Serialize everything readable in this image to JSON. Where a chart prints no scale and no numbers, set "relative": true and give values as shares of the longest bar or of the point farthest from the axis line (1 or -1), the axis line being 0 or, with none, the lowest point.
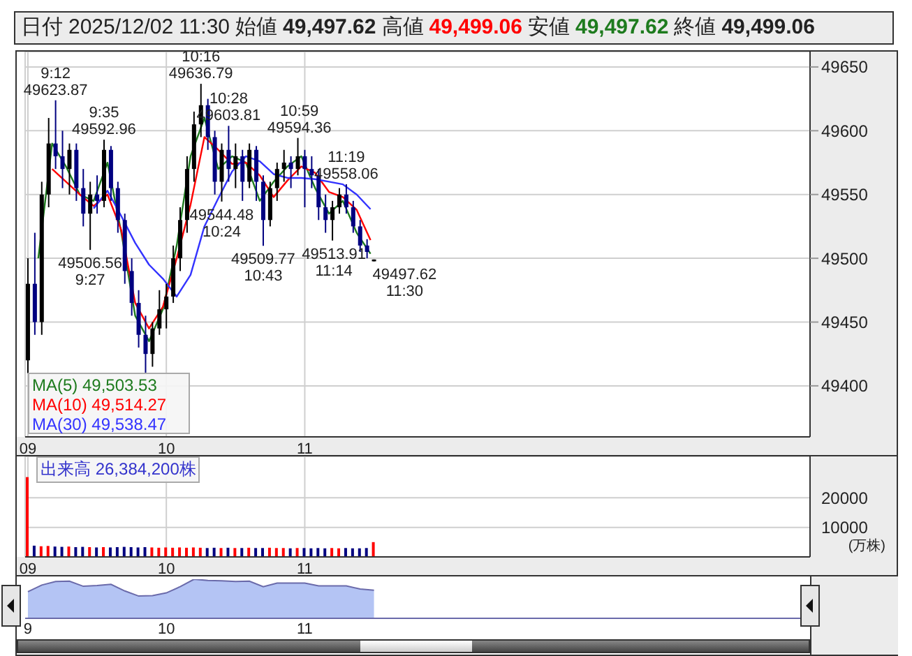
{
  "chart_data": [
    {
      "type": "candlestick",
      "title": "日付 2025/12/02 11:30 始値 49,497.62 高値 49,499.06 安値 49,497.62 終値 49,499.06",
      "x": [
        9,
        9.05,
        9.1,
        9.15,
        9.2,
        9.25,
        9.3,
        9.35,
        9.4,
        9.45,
        9.5,
        9.55,
        9.6,
        9.65,
        9.7,
        9.75,
        9.8,
        9.85,
        9.9,
        9.95,
        10,
        10.05,
        10.1,
        10.15,
        10.2,
        10.25,
        10.3,
        10.35,
        10.4,
        10.45,
        10.5,
        10.55,
        10.6,
        10.65,
        10.7,
        10.75,
        10.8,
        10.85,
        10.9,
        10.95,
        11,
        11.05,
        11.1,
        11.15,
        11.2,
        11.25,
        11.3,
        11.35,
        11.4,
        11.45,
        11.5
      ],
      "ohlc": [
        [
          49420,
          49500,
          49410,
          49480
        ],
        [
          49480,
          49520,
          49440,
          49450
        ],
        [
          49450,
          49560,
          49440,
          49550
        ],
        [
          49550,
          49610,
          49540,
          49590
        ],
        [
          49590,
          49623.87,
          49570,
          49580
        ],
        [
          49580,
          49600,
          49555,
          49570
        ],
        [
          49570,
          49590,
          49550,
          49585
        ],
        [
          49585,
          49590,
          49545,
          49555
        ],
        [
          49555,
          49570,
          49525,
          49535
        ],
        [
          49535,
          49560,
          49506.56,
          49550
        ],
        [
          49550,
          49565,
          49535,
          49545
        ],
        [
          49545,
          49592.96,
          49540,
          49585
        ],
        [
          49585,
          49588,
          49545,
          49555
        ],
        [
          49555,
          49560,
          49520,
          49530
        ],
        [
          49530,
          49535,
          49480,
          49490
        ],
        [
          49490,
          49500,
          49455,
          49465
        ],
        [
          49465,
          49475,
          49430,
          49440
        ],
        [
          49440,
          49455,
          49410,
          49425
        ],
        [
          49425,
          49450,
          49415,
          49445
        ],
        [
          49445,
          49475,
          49440,
          49460
        ],
        [
          49460,
          49480,
          49445,
          49470
        ],
        [
          49470,
          49510,
          49465,
          49500
        ],
        [
          49500,
          49540,
          49490,
          49530
        ],
        [
          49530,
          49580,
          49520,
          49570
        ],
        [
          49570,
          49615,
          49560,
          49605
        ],
        [
          49605,
          49636.79,
          49595,
          49620
        ],
        [
          49620,
          49625,
          49585,
          49595
        ],
        [
          49595,
          49600,
          49550,
          49560
        ],
        [
          49560,
          49590,
          49544.48,
          49585
        ],
        [
          49585,
          49603.81,
          49560,
          49570
        ],
        [
          49570,
          49590,
          49555,
          49580
        ],
        [
          49580,
          49585,
          49545,
          49560
        ],
        [
          49560,
          49590,
          49555,
          49585
        ],
        [
          49585,
          49588,
          49545,
          49560
        ],
        [
          49560,
          49565,
          49509.77,
          49530
        ],
        [
          49530,
          49560,
          49525,
          49555
        ],
        [
          49555,
          49575,
          49545,
          49570
        ],
        [
          49570,
          49585,
          49560,
          49575
        ],
        [
          49575,
          49580,
          49555,
          49570
        ],
        [
          49570,
          49594.36,
          49565,
          49580
        ],
        [
          49580,
          49585,
          49540,
          49570
        ],
        [
          49570,
          49580,
          49555,
          49565
        ],
        [
          49565,
          49570,
          49530,
          49540
        ],
        [
          49540,
          49550,
          49520,
          49530
        ],
        [
          49530,
          49545,
          49513.91,
          49540
        ],
        [
          49540,
          49555,
          49535,
          49550
        ],
        [
          49550,
          49558.06,
          49535,
          49540
        ],
        [
          49540,
          49545,
          49520,
          49525
        ],
        [
          49525,
          49530,
          49505,
          49510
        ],
        [
          49510,
          49515,
          49500,
          49505
        ],
        [
          49497.62,
          49499.06,
          49497.62,
          49499.06
        ]
      ],
      "colors": [
        "#000000",
        "#000080",
        "#000000",
        "#000000",
        "#000080",
        "#000080",
        "#000000",
        "#000080",
        "#000080",
        "#000000",
        "#000080",
        "#000000",
        "#000080",
        "#000080",
        "#000080",
        "#000080",
        "#000080",
        "#000080",
        "#000000",
        "#000000",
        "#000000",
        "#000000",
        "#000000",
        "#000000",
        "#000000",
        "#000000",
        "#000080",
        "#000080",
        "#000000",
        "#000080",
        "#000000",
        "#000080",
        "#000000",
        "#000080",
        "#000080",
        "#000000",
        "#000000",
        "#000000",
        "#000080",
        "#000000",
        "#000080",
        "#000080",
        "#000080",
        "#000080",
        "#000000",
        "#000000",
        "#000080",
        "#000080",
        "#000080",
        "#000080",
        "#000000"
      ],
      "series": [
        {
          "type": "line",
          "name": "MA(5) 49,503.53",
          "color": "#1e7b1e",
          "x": [
            9.075,
            9.175,
            9.275,
            9.375,
            9.475,
            9.575,
            9.675,
            9.775,
            9.875,
            9.975,
            10.075,
            10.175,
            10.275,
            10.375,
            10.475,
            10.575,
            10.675,
            10.775,
            10.875,
            10.975,
            11.075,
            11.175,
            11.275,
            11.375,
            11.475
          ],
          "values": [
            49500,
            49590,
            49572,
            49550,
            49545,
            49575,
            49520,
            49455,
            49435,
            49460,
            49510,
            49580,
            49610,
            49570,
            49580,
            49575,
            49545,
            49560,
            49572,
            49580,
            49555,
            49535,
            49545,
            49520,
            49503.53
          ]
        },
        {
          "type": "line",
          "name": "MA(10) 49,514.27",
          "color": "#ff0000",
          "x": [
            9.175,
            9.275,
            9.375,
            9.475,
            9.575,
            9.675,
            9.775,
            9.875,
            9.975,
            10.075,
            10.175,
            10.275,
            10.375,
            10.475,
            10.575,
            10.675,
            10.775,
            10.875,
            10.975,
            11.075,
            11.175,
            11.275,
            11.375,
            11.475
          ],
          "values": [
            49570,
            49560,
            49550,
            49541,
            49550,
            49522,
            49465,
            49445,
            49462,
            49500,
            49542,
            49595,
            49585,
            49574,
            49575,
            49565,
            49548,
            49561,
            49572,
            49567,
            49552,
            49548,
            49538,
            49514.27
          ]
        },
        {
          "type": "line",
          "name": "MA(30) 49,538.47",
          "color": "#3333ff",
          "x": [
            9.475,
            9.575,
            9.675,
            9.775,
            9.875,
            9.975,
            10.075,
            10.175,
            10.275,
            10.375,
            10.475,
            10.575,
            10.675,
            10.775,
            10.875,
            10.975,
            11.075,
            11.175,
            11.275,
            11.375,
            11.475
          ],
          "values": [
            49539,
            49553,
            49533,
            49512,
            49495,
            49484,
            49470,
            49487,
            49525,
            49547,
            49568,
            49580,
            49576,
            49566,
            49563,
            49563,
            49562,
            49560,
            49558,
            49550,
            49538.47
          ]
        }
      ],
      "xlim": [
        8.98,
        14.65
      ],
      "xticks": [
        {
          "value": 9,
          "label": "09"
        },
        {
          "value": 10,
          "label": "10"
        },
        {
          "value": 11,
          "label": "11"
        }
      ],
      "ylim": [
        49360,
        49662
      ],
      "yticks": [
        49400,
        49450,
        49500,
        49550,
        49600,
        49650
      ],
      "grid": true,
      "legend": "bottom left",
      "annotations": [
        {
          "text": "9:12\n49623.87",
          "x": 9.2,
          "y": 49623.87
        },
        {
          "text": "49506.56\n9:27",
          "x": 9.45,
          "y": 49506.56
        },
        {
          "text": "9:35\n49592.96",
          "x": 9.55,
          "y": 49592.96
        },
        {
          "text": "10:16\n49636.79",
          "x": 10.25,
          "y": 49636.79
        },
        {
          "text": "49544.48\n10:24",
          "x": 10.4,
          "y": 49544.48
        },
        {
          "text": "10:28\n49603.81",
          "x": 10.45,
          "y": 49603.81
        },
        {
          "text": "49509.77\n10:43",
          "x": 10.7,
          "y": 49509.77
        },
        {
          "text": "10:59\n49594.36",
          "x": 10.95,
          "y": 49594.36
        },
        {
          "text": "49513.91\n11:14",
          "x": 11.2,
          "y": 49513.91
        },
        {
          "text": "11:19\n49558.06",
          "x": 11.3,
          "y": 49558.06
        },
        {
          "text": "49497.62\n11:30",
          "x": 11.5,
          "y": 49497.62
        }
      ]
    },
    {
      "type": "bar",
      "title": "出来高 26,384,200株",
      "ylabel": "(万株)",
      "x": [
        9,
        9.05,
        9.1,
        9.15,
        9.2,
        9.25,
        9.3,
        9.35,
        9.4,
        9.45,
        9.5,
        9.55,
        9.6,
        9.65,
        9.7,
        9.75,
        9.8,
        9.85,
        9.9,
        9.95,
        10,
        10.05,
        10.1,
        10.15,
        10.2,
        10.25,
        10.3,
        10.35,
        10.4,
        10.45,
        10.5,
        10.55,
        10.6,
        10.65,
        10.7,
        10.75,
        10.8,
        10.85,
        10.9,
        10.95,
        11,
        11.05,
        11.1,
        11.15,
        11.2,
        11.25,
        11.3,
        11.35,
        11.4,
        11.45,
        11.5
      ],
      "values": [
        27000,
        3800,
        3600,
        3700,
        3500,
        3400,
        3500,
        3300,
        3400,
        3300,
        3200,
        3300,
        3200,
        3300,
        3400,
        3300,
        3200,
        3300,
        3200,
        3100,
        3200,
        3100,
        3200,
        3100,
        3200,
        3100,
        3000,
        3100,
        3000,
        3100,
        3000,
        3000,
        3100,
        3000,
        3000,
        3100,
        3000,
        3000,
        2900,
        3000,
        3000,
        2900,
        3000,
        2900,
        3000,
        2900,
        3000,
        2900,
        2900,
        3000,
        5000
      ],
      "colors": [
        "#ff0000",
        "#000080",
        "#ff0000",
        "#ff0000",
        "#000080",
        "#000080",
        "#ff0000",
        "#000080",
        "#000080",
        "#ff0000",
        "#000080",
        "#ff0000",
        "#000080",
        "#000080",
        "#000080",
        "#000080",
        "#000080",
        "#000080",
        "#ff0000",
        "#ff0000",
        "#ff0000",
        "#ff0000",
        "#ff0000",
        "#ff0000",
        "#ff0000",
        "#ff0000",
        "#000080",
        "#000080",
        "#ff0000",
        "#000080",
        "#ff0000",
        "#000080",
        "#ff0000",
        "#000080",
        "#000080",
        "#ff0000",
        "#ff0000",
        "#ff0000",
        "#000080",
        "#ff0000",
        "#000080",
        "#000080",
        "#000080",
        "#000080",
        "#ff0000",
        "#ff0000",
        "#000080",
        "#000080",
        "#000080",
        "#000080",
        "#ff0000"
      ],
      "xlim": [
        8.98,
        14.65
      ],
      "xticks": [
        {
          "value": 9,
          "label": "09"
        },
        {
          "value": 10,
          "label": "10"
        },
        {
          "value": 11,
          "label": "11"
        }
      ],
      "ylim": [
        0,
        34000
      ],
      "yticks": [
        10000,
        20000
      ],
      "grid": true
    },
    {
      "type": "area",
      "relative": true,
      "color": "#b4c4f4",
      "x": [
        9,
        9.1,
        9.2,
        9.3,
        9.4,
        9.5,
        9.6,
        9.7,
        9.8,
        9.9,
        10,
        10.1,
        10.2,
        10.3,
        10.4,
        10.5,
        10.6,
        10.7,
        10.8,
        10.9,
        11,
        11.1,
        11.2,
        11.3,
        11.4,
        11.5
      ],
      "values": [
        0.68,
        0.85,
        0.94,
        0.95,
        0.82,
        0.84,
        0.87,
        0.7,
        0.57,
        0.58,
        0.65,
        0.81,
        1,
        0.97,
        0.96,
        0.94,
        0.95,
        0.81,
        0.9,
        0.9,
        0.9,
        0.83,
        0.83,
        0.83,
        0.75,
        0.72
      ],
      "xlim": [
        8.98,
        14.65
      ],
      "xticks": [
        9,
        10,
        11
      ]
    }
  ]
}
